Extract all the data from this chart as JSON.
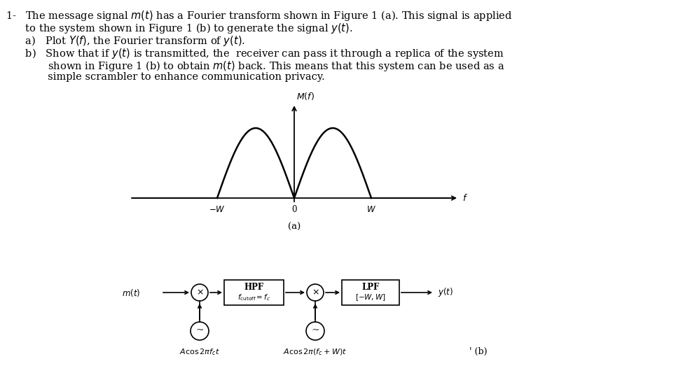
{
  "background_color": "#ffffff",
  "line1": "1-   The message signal $m(t)$ has a Fourier transform shown in Figure 1 (a). This signal is applied",
  "line2": "      to the system shown in Figure 1 (b) to generate the signal $y(t)$.",
  "line3": "      a)   Plot $Y(f)$, the Fourier transform of $y(t)$.",
  "line4": "      b)   Show that if $y(t)$ is transmitted, the  receiver can pass it through a replica of the system",
  "line5": "             shown in Figure 1 (b) to obtain $m(t)$ back. This means that this system can be used as a",
  "line6": "             simple scrambler to enhance communication privacy.",
  "label_Mf": "$M(f)$",
  "label_f": "$f$",
  "label_negW": "$-W$",
  "label_0": "0",
  "label_W": "$W$",
  "label_a": "(a)",
  "label_b": "' (b)",
  "label_mt": "$m(t)$",
  "label_yt": "$y(t)$",
  "label_hpf1": "HPF",
  "label_hpf2": "$f_{\\mathrm{cutoff}} = f_c$",
  "label_lpf1": "LPF",
  "label_lpf2": "$[-W, W]$",
  "label_osc1": "$A \\cos 2\\pi f_c t$",
  "label_osc2": "$A \\cos 2\\pi(f_c + W)t$",
  "fontsize_text": 10.5,
  "fontsize_small": 9.0
}
